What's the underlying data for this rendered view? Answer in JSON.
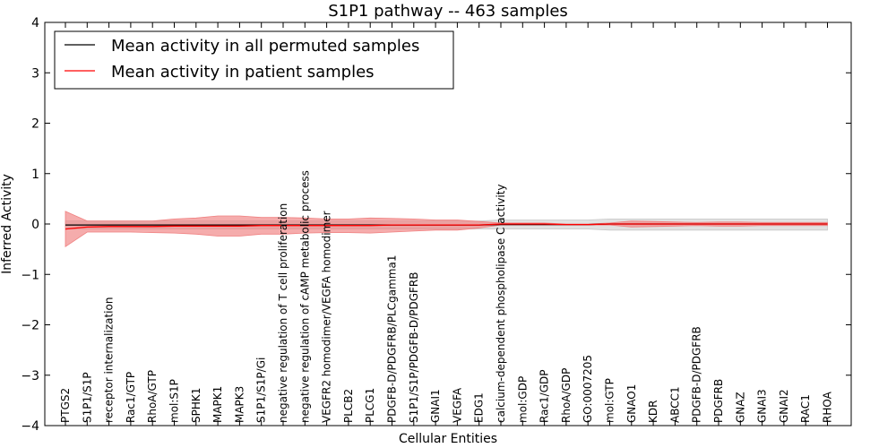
{
  "chart_data": {
    "type": "line",
    "title": "S1P1 pathway -- 463 samples",
    "xlabel": "Cellular Entities",
    "ylabel": "Inferred Activity",
    "ylim": [
      -4,
      4
    ],
    "yticks": [
      -4,
      -3,
      -2,
      -1,
      0,
      1,
      2,
      3,
      4
    ],
    "ytick_labels": [
      "−4",
      "−3",
      "−2",
      "−1",
      "0",
      "1",
      "2",
      "3",
      "4"
    ],
    "legend_position": "top-left",
    "categories": [
      "PTGS2",
      "S1P1/S1P",
      "receptor internalization",
      "Rac1/GTP",
      "RhoA/GTP",
      "mol:S1P",
      "SPHK1",
      "MAPK1",
      "MAPK3",
      "S1P1/S1P/Gi",
      "negative regulation of T cell proliferation",
      "negative regulation of cAMP metabolic process",
      "VEGFR2 homodimer/VEGFA homodimer",
      "PLCB2",
      "PLCG1",
      "PDGFB-D/PDGFRB/PLCgamma1",
      "S1P1/S1P/PDGFB-D/PDGFRB",
      "GNAI1",
      "VEGFA",
      "EDG1",
      "calcium-dependent phospholipase C activity",
      "mol:GDP",
      "Rac1/GDP",
      "RhoA/GDP",
      "GO:0007205",
      "mol:GTP",
      "GNAO1",
      "KDR",
      "ABCC1",
      "PDGFB-D/PDGFRB",
      "PDGFRB",
      "GNAZ",
      "GNAI3",
      "GNAI2",
      "RAC1",
      "RHOA"
    ],
    "series": [
      {
        "name": "Mean activity in all permuted samples",
        "color": "#000000",
        "band_color": "#c8c8c8",
        "values": [
          -0.02,
          -0.02,
          -0.02,
          -0.02,
          -0.02,
          -0.02,
          -0.02,
          -0.02,
          -0.02,
          -0.02,
          -0.02,
          -0.02,
          -0.02,
          -0.02,
          -0.02,
          -0.02,
          -0.02,
          -0.02,
          -0.02,
          -0.02,
          -0.01,
          -0.01,
          -0.01,
          -0.01,
          -0.01,
          0.0,
          0.0,
          0.0,
          0.0,
          0.0,
          0.0,
          0.0,
          0.0,
          0.0,
          0.0,
          0.0
        ],
        "band_upper": [
          0.06,
          0.06,
          0.06,
          0.06,
          0.06,
          0.06,
          0.06,
          0.06,
          0.06,
          0.06,
          0.06,
          0.06,
          0.06,
          0.06,
          0.06,
          0.06,
          0.06,
          0.06,
          0.06,
          0.06,
          0.08,
          0.08,
          0.08,
          0.08,
          0.08,
          0.1,
          0.1,
          0.1,
          0.1,
          0.1,
          0.1,
          0.1,
          0.1,
          0.1,
          0.1,
          0.1
        ],
        "band_lower": [
          -0.1,
          -0.1,
          -0.1,
          -0.1,
          -0.1,
          -0.1,
          -0.1,
          -0.1,
          -0.1,
          -0.1,
          -0.1,
          -0.1,
          -0.1,
          -0.1,
          -0.1,
          -0.1,
          -0.1,
          -0.1,
          -0.1,
          -0.1,
          -0.1,
          -0.1,
          -0.1,
          -0.1,
          -0.1,
          -0.12,
          -0.12,
          -0.12,
          -0.12,
          -0.12,
          -0.12,
          -0.12,
          -0.12,
          -0.12,
          -0.12,
          -0.12
        ]
      },
      {
        "name": "Mean activity in patient samples",
        "color": "#ff0000",
        "band_color": "#f08080",
        "values": [
          -0.1,
          -0.06,
          -0.05,
          -0.05,
          -0.05,
          -0.04,
          -0.04,
          -0.04,
          -0.04,
          -0.03,
          -0.03,
          -0.03,
          -0.03,
          -0.03,
          -0.03,
          -0.02,
          -0.02,
          -0.02,
          -0.02,
          -0.02,
          0.0,
          0.0,
          0.0,
          -0.01,
          -0.01,
          0.0,
          0.0,
          0.0,
          0.0,
          0.0,
          0.0,
          0.0,
          0.0,
          0.0,
          0.0,
          0.0
        ],
        "band_upper": [
          0.25,
          0.06,
          0.06,
          0.06,
          0.06,
          0.1,
          0.12,
          0.16,
          0.16,
          0.13,
          0.13,
          0.12,
          0.1,
          0.1,
          0.12,
          0.11,
          0.1,
          0.08,
          0.08,
          0.05,
          0.02,
          0.02,
          0.02,
          0.0,
          0.0,
          0.02,
          0.06,
          0.05,
          0.04,
          0.03,
          0.04,
          0.04,
          0.03,
          0.03,
          0.03,
          0.03
        ],
        "band_lower": [
          -0.45,
          -0.16,
          -0.16,
          -0.16,
          -0.17,
          -0.18,
          -0.2,
          -0.24,
          -0.24,
          -0.2,
          -0.2,
          -0.18,
          -0.17,
          -0.17,
          -0.18,
          -0.16,
          -0.14,
          -0.12,
          -0.12,
          -0.08,
          -0.02,
          -0.02,
          -0.02,
          -0.02,
          -0.02,
          -0.02,
          -0.06,
          -0.05,
          -0.04,
          -0.03,
          -0.04,
          -0.04,
          -0.03,
          -0.03,
          -0.03,
          -0.03
        ]
      }
    ]
  }
}
